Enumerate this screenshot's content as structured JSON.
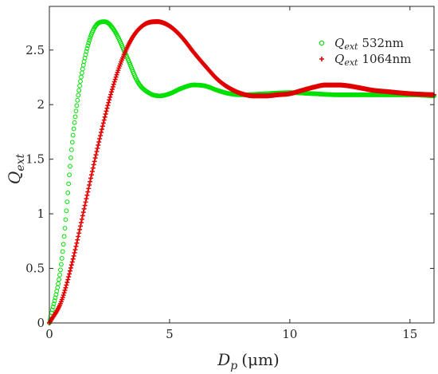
{
  "chart_data": {
    "type": "scatter",
    "title": "",
    "xlabel": {
      "symbol": "D",
      "sub": "p",
      "unit": "(μm)"
    },
    "ylabel": {
      "symbol": "Q",
      "sub": "ext"
    },
    "xlim": [
      0,
      16
    ],
    "ylim": [
      0,
      2.9
    ],
    "x_ticks": [
      0,
      5,
      10,
      15
    ],
    "x_tick_labels": [
      "0",
      "5",
      "10",
      "15"
    ],
    "y_ticks": [
      0,
      0.5,
      1,
      1.5,
      2,
      2.5
    ],
    "y_tick_labels": [
      "0",
      "0.5",
      "1",
      "1.5",
      "2",
      "2.5"
    ],
    "grid": false,
    "legend_position": "top-right",
    "series": [
      {
        "name": "532nm",
        "label_symbol": "Q",
        "label_sub": "ext",
        "marker": "circle",
        "color": "#00e000",
        "x": [
          0,
          0.5,
          1,
          1.5,
          2,
          2.3,
          2.7,
          3.2,
          3.7,
          4.2,
          4.6,
          5,
          5.5,
          6,
          6.5,
          7,
          7.5,
          8,
          9,
          10,
          11,
          12,
          13,
          14,
          15,
          16
        ],
        "y": [
          0,
          0.55,
          1.75,
          2.45,
          2.74,
          2.76,
          2.68,
          2.45,
          2.2,
          2.1,
          2.08,
          2.1,
          2.15,
          2.18,
          2.17,
          2.13,
          2.1,
          2.09,
          2.1,
          2.11,
          2.1,
          2.09,
          2.09,
          2.09,
          2.09,
          2.08
        ]
      },
      {
        "name": "1064nm",
        "label_symbol": "Q",
        "label_sub": "ext",
        "marker": "plus",
        "color": "#e00000",
        "x": [
          0,
          0.5,
          1,
          1.5,
          2,
          2.5,
          3,
          3.5,
          4,
          4.5,
          5,
          5.5,
          6,
          6.5,
          7,
          7.5,
          8,
          8.5,
          9,
          9.5,
          10,
          10.5,
          11,
          11.5,
          12,
          12.5,
          13,
          13.5,
          14,
          15,
          16
        ],
        "y": [
          0,
          0.2,
          0.6,
          1.1,
          1.6,
          2.05,
          2.4,
          2.63,
          2.74,
          2.76,
          2.72,
          2.62,
          2.48,
          2.35,
          2.23,
          2.15,
          2.1,
          2.08,
          2.08,
          2.09,
          2.1,
          2.13,
          2.16,
          2.18,
          2.18,
          2.17,
          2.15,
          2.13,
          2.12,
          2.1,
          2.09
        ]
      }
    ]
  }
}
